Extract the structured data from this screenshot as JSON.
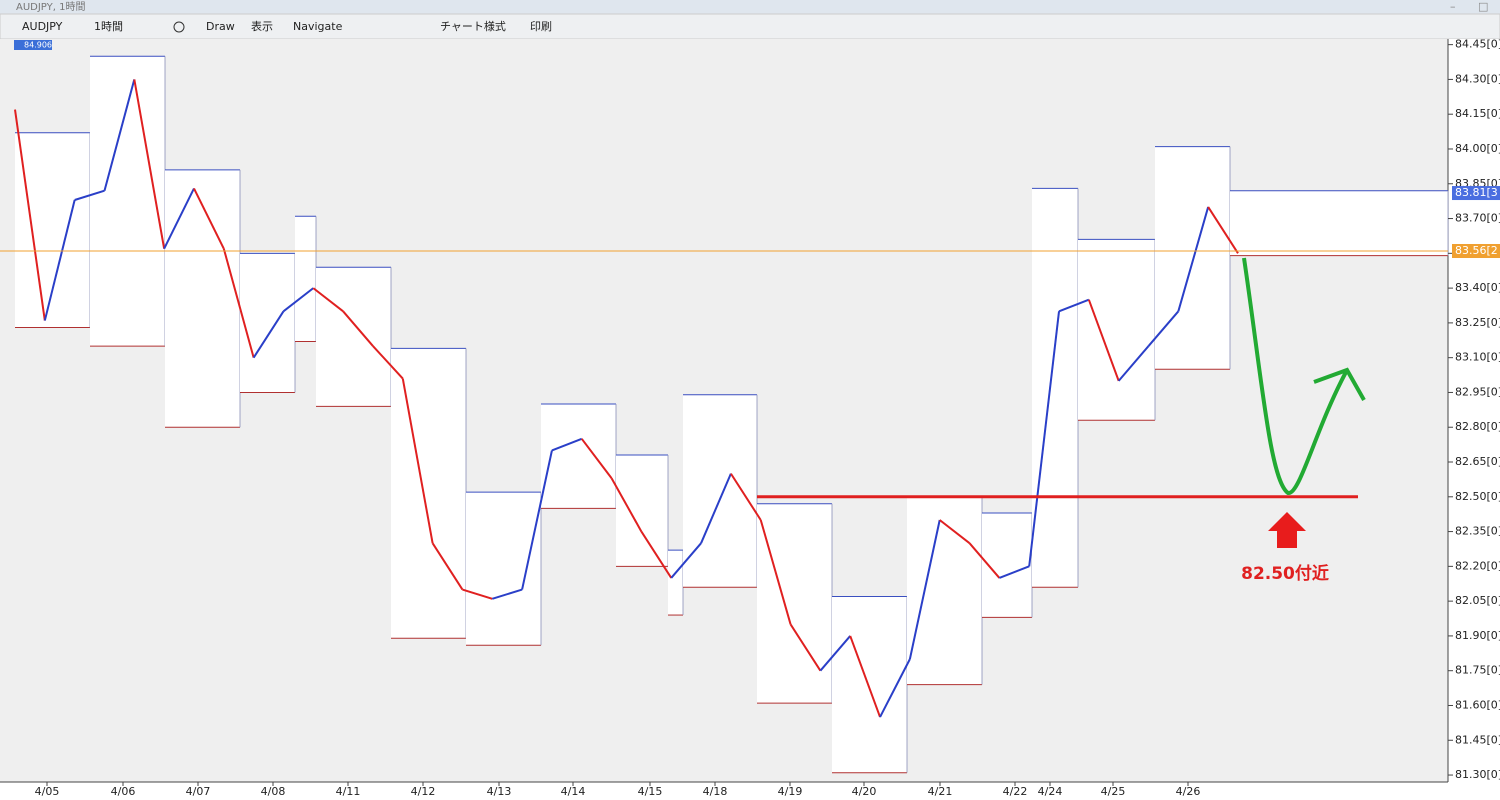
{
  "window": {
    "title": "AUDJPY, 1時間"
  },
  "toolbar": {
    "items": [
      "AUDJPY",
      "1時間",
      "Draw",
      "表示",
      "Navigate",
      "チャート様式",
      "印刷"
    ]
  },
  "chart_data": {
    "type": "range-line",
    "marker_label": "84.906",
    "ylim": [
      81.27,
      84.47
    ],
    "yticks": [
      {
        "value": 84.45,
        "label": "84.45[0]"
      },
      {
        "value": 84.3,
        "label": "84.30[0]"
      },
      {
        "value": 84.15,
        "label": "84.15[0]"
      },
      {
        "value": 84.0,
        "label": "84.00[0]"
      },
      {
        "value": 83.85,
        "label": "83.85[0]"
      },
      {
        "value": 83.7,
        "label": "83.70[0]"
      },
      {
        "value": 83.55,
        "label": "83.55[0]"
      },
      {
        "value": 83.4,
        "label": "83.40[0]"
      },
      {
        "value": 83.25,
        "label": "83.25[0]"
      },
      {
        "value": 83.1,
        "label": "83.10[0]"
      },
      {
        "value": 82.95,
        "label": "82.95[0]"
      },
      {
        "value": 82.8,
        "label": "82.80[0]"
      },
      {
        "value": 82.65,
        "label": "82.65[0]"
      },
      {
        "value": 82.5,
        "label": "82.50[0]"
      },
      {
        "value": 82.35,
        "label": "82.35[0]"
      },
      {
        "value": 82.2,
        "label": "82.20[0]"
      },
      {
        "value": 82.05,
        "label": "82.05[0]"
      },
      {
        "value": 81.9,
        "label": "81.90[0]"
      },
      {
        "value": 81.75,
        "label": "81.75[0]"
      },
      {
        "value": 81.6,
        "label": "81.60[0]"
      },
      {
        "value": 81.45,
        "label": "81.45[0]"
      },
      {
        "value": 81.3,
        "label": "81.30[0]"
      }
    ],
    "dates": [
      "4/05",
      "4/06",
      "4/07",
      "4/08",
      "4/11",
      "4/12",
      "4/13",
      "4/14",
      "4/15",
      "4/18",
      "4/19",
      "4/20",
      "4/21",
      "4/22",
      "4/24",
      "4/25",
      "4/26"
    ],
    "ranges": {
      "high_color": "#3a4fc0",
      "low_color": "#b03030",
      "highs": [
        84.07,
        84.4,
        83.91,
        83.55,
        83.71,
        83.49,
        83.14,
        82.52,
        82.9,
        82.68,
        82.27,
        82.94,
        82.47,
        82.07,
        82.5,
        82.43,
        83.83,
        83.61,
        84.01,
        83.82
      ],
      "lows": [
        83.23,
        83.15,
        82.8,
        82.95,
        83.17,
        82.89,
        81.89,
        81.86,
        82.45,
        82.2,
        81.99,
        82.11,
        81.61,
        81.31,
        81.69,
        81.98,
        82.11,
        82.83,
        83.05,
        83.54
      ]
    },
    "price": {
      "up_color": "#2a3fc8",
      "down_color": "#e02020",
      "values": [
        84.17,
        83.26,
        83.78,
        83.82,
        84.3,
        83.57,
        83.83,
        83.57,
        83.1,
        83.3,
        83.4,
        83.3,
        83.15,
        83.01,
        82.3,
        82.1,
        82.06,
        82.1,
        82.7,
        82.75,
        82.58,
        82.35,
        82.15,
        82.3,
        82.6,
        82.4,
        81.95,
        81.75,
        81.9,
        81.55,
        81.8,
        82.4,
        82.3,
        82.15,
        82.2,
        83.3,
        83.35,
        83.0,
        83.15,
        83.3,
        83.75,
        83.55
      ]
    },
    "price_lines": [
      {
        "value": 83.56,
        "label": "83.56[2",
        "color": "#f0a030"
      },
      {
        "value": 83.81,
        "label": "83.81[3",
        "color": "#4a6ee0"
      }
    ],
    "level": {
      "value": 82.5,
      "label": "82.50付近",
      "color": "#e02020"
    }
  }
}
